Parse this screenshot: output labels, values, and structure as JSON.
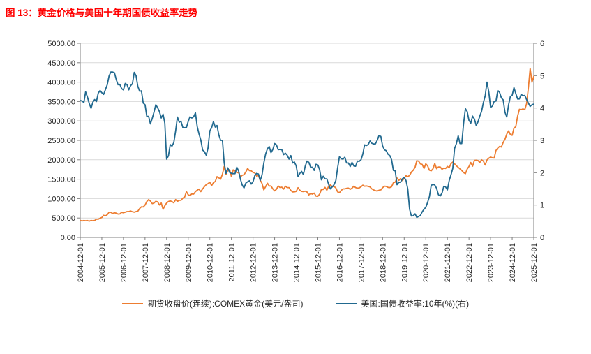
{
  "title": "图 13：黄金价格与美国十年期国债收益率走势",
  "colors": {
    "title": "#ff0000",
    "gold_series": "#ED7D31",
    "yield_series": "#21698F",
    "gridline": "#D9D9D9",
    "axis": "#808080",
    "tick_text": "#262626"
  },
  "chart_data": {
    "type": "line",
    "title": "图 13：黄金价格与美国十年期国债收益率走势",
    "legend_position": "bottom",
    "grid": "horizontal",
    "months_per_tick": 12,
    "left_axis": {
      "min": 0,
      "max": 5000,
      "step": 500,
      "label_format": "two_decimals"
    },
    "right_axis": {
      "min": 0,
      "max": 6,
      "step": 1
    },
    "x_tick_labels": [
      "2004-12-01",
      "2005-12-01",
      "2006-12-01",
      "2007-12-01",
      "2008-12-01",
      "2009-12-01",
      "2010-12-01",
      "2011-12-01",
      "2012-12-01",
      "2013-12-01",
      "2014-12-01",
      "2015-12-01",
      "2016-12-01",
      "2017-12-01",
      "2018-12-01",
      "2019-12-01",
      "2020-12-01",
      "2021-12-01",
      "2022-12-01",
      "2023-12-01",
      "2024-12-01",
      "2025-12-01"
    ],
    "x_start": "2004-12",
    "x_frequency": "monthly",
    "series": [
      {
        "name": "期货收盘价(连续):COMEX黄金(美元/盎司)",
        "axis": "left",
        "color": "#ED7D31",
        "values": [
          438,
          425,
          435,
          430,
          435,
          420,
          437,
          430,
          437,
          470,
          470,
          495,
          515,
          570,
          555,
          585,
          650,
          645,
          615,
          635,
          625,
          600,
          605,
          645,
          635,
          650,
          665,
          665,
          680,
          660,
          650,
          665,
          675,
          745,
          790,
          785,
          835,
          925,
          975,
          935,
          870,
          885,
          930,
          915,
          835,
          885,
          725,
          815,
          885,
          925,
          940,
          920,
          890,
          975,
          930,
          955,
          955,
          1010,
          1040,
          1180,
          1095,
          1080,
          1120,
          1115,
          1180,
          1215,
          1245,
          1180,
          1250,
          1310,
          1360,
          1385,
          1420,
          1335,
          1410,
          1440,
          1565,
          1535,
          1500,
          1630,
          1830,
          1620,
          1725,
          1745,
          1565,
          1740,
          1710,
          1670,
          1665,
          1560,
          1600,
          1615,
          1685,
          1775,
          1720,
          1715,
          1675,
          1660,
          1580,
          1595,
          1475,
          1390,
          1225,
          1310,
          1395,
          1325,
          1325,
          1250,
          1200,
          1240,
          1325,
          1285,
          1295,
          1245,
          1320,
          1285,
          1285,
          1210,
          1170,
          1175,
          1185,
          1280,
          1215,
          1185,
          1180,
          1190,
          1170,
          1095,
          1135,
          1115,
          1140,
          1065,
          1060,
          1115,
          1235,
          1235,
          1290,
          1215,
          1320,
          1355,
          1310,
          1315,
          1275,
          1175,
          1150,
          1210,
          1250,
          1250,
          1265,
          1270,
          1240,
          1270,
          1320,
          1285,
          1270,
          1275,
          1305,
          1345,
          1320,
          1325,
          1315,
          1300,
          1250,
          1225,
          1205,
          1195,
          1215,
          1225,
          1280,
          1320,
          1315,
          1290,
          1285,
          1305,
          1410,
          1425,
          1530,
          1470,
          1515,
          1465,
          1520,
          1590,
          1565,
          1595,
          1685,
          1730,
          1800,
          1975,
          1965,
          1895,
          1880,
          1775,
          1895,
          1845,
          1730,
          1715,
          1770,
          1905,
          1770,
          1815,
          1815,
          1755,
          1785,
          1775,
          1830,
          1795,
          1900,
          1940,
          1895,
          1845,
          1805,
          1765,
          1725,
          1670,
          1640,
          1760,
          1825,
          1930,
          1835,
          1985,
          1990,
          1980,
          1930,
          2000,
          1965,
          1865,
          1995,
          2040,
          2070,
          2050,
          2045,
          2240,
          2300,
          2345,
          2330,
          2450,
          2525,
          2660,
          2745,
          2650,
          2630,
          2815,
          2850,
          3120,
          3300,
          3290,
          3310,
          3290,
          3445,
          3860,
          4350,
          4000,
          4150
        ]
      },
      {
        "name": "美国:国债收益率:10年(%)(右)",
        "axis": "right",
        "color": "#21698F",
        "values": [
          4.23,
          4.22,
          4.17,
          4.5,
          4.34,
          4.14,
          3.99,
          4.18,
          4.26,
          4.2,
          4.46,
          4.54,
          4.47,
          4.42,
          4.57,
          4.72,
          4.99,
          5.11,
          5.11,
          5.09,
          4.88,
          4.72,
          4.73,
          4.6,
          4.56,
          4.76,
          4.72,
          4.56,
          4.69,
          4.75,
          5.1,
          5.0,
          4.67,
          4.52,
          4.53,
          4.15,
          4.1,
          3.74,
          3.74,
          3.51,
          3.68,
          3.88,
          4.1,
          4.01,
          3.89,
          3.69,
          3.81,
          3.53,
          2.42,
          2.52,
          2.87,
          2.82,
          2.93,
          3.29,
          3.72,
          3.56,
          3.59,
          3.4,
          3.39,
          3.4,
          3.59,
          3.73,
          3.69,
          3.73,
          3.85,
          3.42,
          3.2,
          3.01,
          2.7,
          2.65,
          2.54,
          2.76,
          3.29,
          3.39,
          3.58,
          3.41,
          3.46,
          3.17,
          3.0,
          3.0,
          2.3,
          1.98,
          2.15,
          2.01,
          1.98,
          1.97,
          1.97,
          2.17,
          2.05,
          1.8,
          1.62,
          1.53,
          1.68,
          1.72,
          1.75,
          1.65,
          1.72,
          1.91,
          1.98,
          1.96,
          1.76,
          1.93,
          2.3,
          2.58,
          2.74,
          2.81,
          2.62,
          2.72,
          2.9,
          2.86,
          2.71,
          2.72,
          2.71,
          2.56,
          2.6,
          2.54,
          2.42,
          2.53,
          2.3,
          2.33,
          2.21,
          1.88,
          1.98,
          2.04,
          1.94,
          2.2,
          2.36,
          2.32,
          2.17,
          2.17,
          2.07,
          2.26,
          2.24,
          2.09,
          1.78,
          1.89,
          1.81,
          1.81,
          1.64,
          1.5,
          1.56,
          1.63,
          1.76,
          2.14,
          2.49,
          2.43,
          2.42,
          2.48,
          2.3,
          2.3,
          2.19,
          2.32,
          2.21,
          2.2,
          2.36,
          2.35,
          2.4,
          2.58,
          2.86,
          2.84,
          2.87,
          2.98,
          2.91,
          2.89,
          2.89,
          3.0,
          3.15,
          3.12,
          2.83,
          2.71,
          2.68,
          2.57,
          2.53,
          2.4,
          2.07,
          2.06,
          1.63,
          1.7,
          1.71,
          1.81,
          1.86,
          1.76,
          1.5,
          0.87,
          0.66,
          0.67,
          0.73,
          0.62,
          0.65,
          0.68,
          0.79,
          0.87,
          0.93,
          1.08,
          1.26,
          1.61,
          1.64,
          1.62,
          1.52,
          1.32,
          1.28,
          1.37,
          1.58,
          1.56,
          1.47,
          1.76,
          1.93,
          2.13,
          2.75,
          2.9,
          3.14,
          2.9,
          2.9,
          3.52,
          3.98,
          3.89,
          3.62,
          3.53,
          3.75,
          3.66,
          3.46,
          3.57,
          3.75,
          3.9,
          4.17,
          4.38,
          4.8,
          4.5,
          4.02,
          4.06,
          4.21,
          4.21,
          4.54,
          4.48,
          4.31,
          4.25,
          3.87,
          3.72,
          4.1,
          4.36,
          4.39,
          4.63,
          4.45,
          4.28,
          4.28,
          4.42,
          4.38,
          4.39,
          4.26,
          4.15,
          4.05,
          4.1,
          4.12
        ]
      }
    ]
  }
}
